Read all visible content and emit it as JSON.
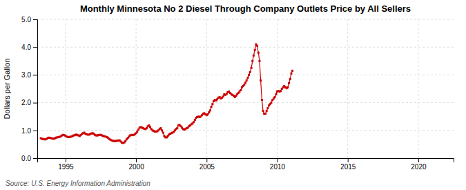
{
  "chart_data": {
    "type": "line",
    "title": "Monthly Minnesota No 2 Diesel Through Company Outlets Price by All Sellers",
    "ylabel": "Dollars per Gallon",
    "annotations": [
      "Source: U.S. Energy Information Administration"
    ],
    "color": "#CC0000",
    "marker": "square",
    "grid": true,
    "xlim": [
      1993.0,
      2022.5
    ],
    "ylim": [
      0.0,
      5.0
    ],
    "xticks": [
      1995,
      2000,
      2005,
      2010,
      2015,
      2020
    ],
    "yticks": [
      {
        "value": 0.0,
        "label": "0.0"
      },
      {
        "value": 1.0,
        "label": "1.0"
      },
      {
        "value": 2.0,
        "label": "2.0"
      },
      {
        "value": 3.0,
        "label": "3.0"
      },
      {
        "value": 4.0,
        "label": "4.0"
      },
      {
        "value": 5.0,
        "label": "5.0"
      }
    ],
    "x": [
      1993.25,
      1993.33,
      1993.42,
      1993.5,
      1993.58,
      1993.67,
      1993.75,
      1993.83,
      1993.92,
      1994.0,
      1994.08,
      1994.17,
      1994.25,
      1994.33,
      1994.42,
      1994.5,
      1994.58,
      1994.67,
      1994.75,
      1994.83,
      1994.92,
      1995.0,
      1995.08,
      1995.17,
      1995.25,
      1995.33,
      1995.42,
      1995.5,
      1995.58,
      1995.67,
      1995.75,
      1995.83,
      1995.92,
      1996.0,
      1996.08,
      1996.17,
      1996.25,
      1996.33,
      1996.42,
      1996.5,
      1996.58,
      1996.67,
      1996.75,
      1996.83,
      1996.92,
      1997.0,
      1997.08,
      1997.17,
      1997.25,
      1997.33,
      1997.42,
      1997.5,
      1997.58,
      1997.67,
      1997.75,
      1997.83,
      1997.92,
      1998.0,
      1998.08,
      1998.17,
      1998.25,
      1998.33,
      1998.42,
      1998.5,
      1998.58,
      1998.67,
      1998.75,
      1998.83,
      1998.92,
      1999.0,
      1999.08,
      1999.17,
      1999.25,
      1999.33,
      1999.42,
      1999.5,
      1999.58,
      1999.67,
      1999.75,
      1999.83,
      1999.92,
      2000.0,
      2000.08,
      2000.17,
      2000.25,
      2000.33,
      2000.42,
      2000.5,
      2000.58,
      2000.67,
      2000.75,
      2000.83,
      2000.92,
      2001.0,
      2001.08,
      2001.17,
      2001.25,
      2001.33,
      2001.42,
      2001.5,
      2001.58,
      2001.67,
      2001.75,
      2001.83,
      2001.92,
      2002.0,
      2002.08,
      2002.17,
      2002.25,
      2002.33,
      2002.42,
      2002.5,
      2002.58,
      2002.67,
      2002.75,
      2002.83,
      2002.92,
      2003.0,
      2003.08,
      2003.17,
      2003.25,
      2003.33,
      2003.42,
      2003.5,
      2003.58,
      2003.67,
      2003.75,
      2003.83,
      2003.92,
      2004.0,
      2004.08,
      2004.17,
      2004.25,
      2004.33,
      2004.42,
      2004.5,
      2004.58,
      2004.67,
      2004.75,
      2004.83,
      2004.92,
      2005.0,
      2005.08,
      2005.17,
      2005.25,
      2005.33,
      2005.42,
      2005.5,
      2005.58,
      2005.67,
      2005.75,
      2005.83,
      2005.92,
      2006.0,
      2006.08,
      2006.17,
      2006.25,
      2006.33,
      2006.42,
      2006.5,
      2006.58,
      2006.67,
      2006.75,
      2006.83,
      2006.92,
      2007.0,
      2007.08,
      2007.17,
      2007.25,
      2007.33,
      2007.42,
      2007.5,
      2007.58,
      2007.67,
      2007.75,
      2007.83,
      2007.92,
      2008.0,
      2008.08,
      2008.17,
      2008.25,
      2008.33,
      2008.42,
      2008.5,
      2008.58,
      2008.67,
      2008.75,
      2008.83,
      2008.92,
      2009.0,
      2009.08,
      2009.17,
      2009.25,
      2009.33,
      2009.42,
      2009.5,
      2009.58,
      2009.67,
      2009.75,
      2009.83,
      2009.92,
      2010.0,
      2010.08,
      2010.17,
      2010.25,
      2010.33,
      2010.42,
      2010.5,
      2010.58,
      2010.67,
      2010.75,
      2010.83,
      2010.92,
      2011.0,
      2011.08
    ],
    "values": [
      0.72,
      0.7,
      0.69,
      0.68,
      0.68,
      0.7,
      0.73,
      0.74,
      0.73,
      0.72,
      0.71,
      0.7,
      0.72,
      0.74,
      0.75,
      0.76,
      0.77,
      0.79,
      0.82,
      0.84,
      0.83,
      0.8,
      0.78,
      0.76,
      0.76,
      0.77,
      0.78,
      0.8,
      0.82,
      0.83,
      0.85,
      0.84,
      0.82,
      0.8,
      0.83,
      0.88,
      0.9,
      0.92,
      0.88,
      0.86,
      0.85,
      0.85,
      0.87,
      0.89,
      0.9,
      0.88,
      0.84,
      0.82,
      0.82,
      0.83,
      0.84,
      0.84,
      0.82,
      0.8,
      0.79,
      0.78,
      0.76,
      0.74,
      0.7,
      0.67,
      0.65,
      0.63,
      0.62,
      0.62,
      0.62,
      0.63,
      0.64,
      0.64,
      0.6,
      0.56,
      0.55,
      0.57,
      0.62,
      0.68,
      0.73,
      0.78,
      0.82,
      0.84,
      0.83,
      0.84,
      0.87,
      0.9,
      0.96,
      1.03,
      1.1,
      1.12,
      1.1,
      1.08,
      1.06,
      1.05,
      1.08,
      1.15,
      1.18,
      1.12,
      1.05,
      1.0,
      0.98,
      0.96,
      0.96,
      0.97,
      1.0,
      1.05,
      1.08,
      1.0,
      0.92,
      0.8,
      0.75,
      0.75,
      0.8,
      0.85,
      0.88,
      0.9,
      0.92,
      0.95,
      1.0,
      1.05,
      1.08,
      1.18,
      1.2,
      1.15,
      1.1,
      1.05,
      1.03,
      1.05,
      1.08,
      1.1,
      1.15,
      1.18,
      1.22,
      1.25,
      1.3,
      1.38,
      1.45,
      1.48,
      1.5,
      1.48,
      1.5,
      1.55,
      1.6,
      1.62,
      1.58,
      1.55,
      1.58,
      1.65,
      1.72,
      1.85,
      1.95,
      2.05,
      2.1,
      2.08,
      2.12,
      2.18,
      2.2,
      2.15,
      2.18,
      2.22,
      2.3,
      2.28,
      2.32,
      2.38,
      2.4,
      2.35,
      2.3,
      2.28,
      2.25,
      2.2,
      2.25,
      2.3,
      2.35,
      2.4,
      2.45,
      2.55,
      2.6,
      2.65,
      2.72,
      2.8,
      2.9,
      3.0,
      3.1,
      3.25,
      3.5,
      3.7,
      3.9,
      4.1,
      4.05,
      3.8,
      3.5,
      2.8,
      2.1,
      1.7,
      1.6,
      1.6,
      1.7,
      1.8,
      1.9,
      1.95,
      2.0,
      2.1,
      2.15,
      2.2,
      2.3,
      2.4,
      2.42,
      2.4,
      2.42,
      2.5,
      2.55,
      2.6,
      2.55,
      2.52,
      2.55,
      2.7,
      2.85,
      3.05,
      3.15
    ]
  }
}
